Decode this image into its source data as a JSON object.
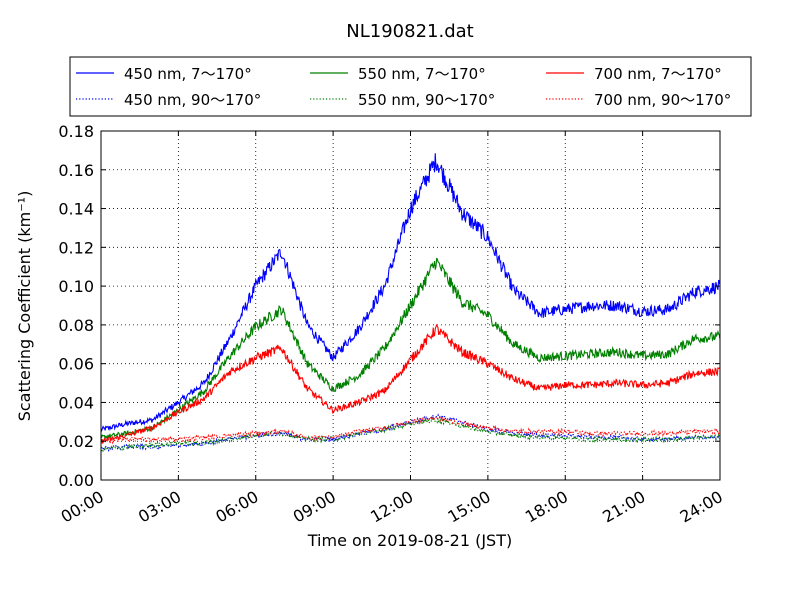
{
  "chart_data": {
    "type": "line",
    "title": "NL190821.dat",
    "xlabel": "Time on 2019-08-21 (JST)",
    "ylabel": "Scattering Coefficient (km⁻¹)",
    "xlim": [
      "00:00",
      "24:00"
    ],
    "ylim": [
      0,
      0.18
    ],
    "grid": true,
    "grid_style": "dotted",
    "legend_position": "top, above plot",
    "x_ticks": [
      "00:00",
      "03:00",
      "06:00",
      "09:00",
      "12:00",
      "15:00",
      "18:00",
      "21:00",
      "24:00"
    ],
    "y_ticks": [
      "0.00",
      "0.02",
      "0.04",
      "0.06",
      "0.08",
      "0.10",
      "0.12",
      "0.14",
      "0.16",
      "0.18"
    ],
    "x": [
      "00:00",
      "01:00",
      "02:00",
      "03:00",
      "04:00",
      "05:00",
      "06:00",
      "07:00",
      "08:00",
      "09:00",
      "10:00",
      "11:00",
      "12:00",
      "13:00",
      "14:00",
      "15:00",
      "16:00",
      "17:00",
      "18:00",
      "19:00",
      "20:00",
      "21:00",
      "22:00",
      "23:00",
      "24:00"
    ],
    "series": [
      {
        "name": "450 nm, 7～170°",
        "color": "#0000ff",
        "style": "solid",
        "values": [
          0.026,
          0.029,
          0.031,
          0.04,
          0.05,
          0.073,
          0.1,
          0.118,
          0.08,
          0.063,
          0.078,
          0.1,
          0.14,
          0.165,
          0.138,
          0.125,
          0.098,
          0.086,
          0.088,
          0.09,
          0.09,
          0.087,
          0.088,
          0.097,
          0.1
        ]
      },
      {
        "name": "550 nm, 7～170°",
        "color": "#008000",
        "style": "solid",
        "values": [
          0.022,
          0.024,
          0.027,
          0.036,
          0.046,
          0.064,
          0.079,
          0.088,
          0.06,
          0.047,
          0.054,
          0.068,
          0.09,
          0.113,
          0.092,
          0.085,
          0.07,
          0.063,
          0.064,
          0.065,
          0.066,
          0.064,
          0.065,
          0.073,
          0.074
        ]
      },
      {
        "name": "700 nm, 7～170°",
        "color": "#ff0000",
        "style": "solid",
        "values": [
          0.02,
          0.023,
          0.027,
          0.035,
          0.042,
          0.056,
          0.063,
          0.068,
          0.047,
          0.036,
          0.04,
          0.046,
          0.062,
          0.078,
          0.066,
          0.06,
          0.052,
          0.047,
          0.049,
          0.049,
          0.05,
          0.049,
          0.05,
          0.055,
          0.056
        ]
      },
      {
        "name": "450 nm, 90～170°",
        "color": "#0000ff",
        "style": "dotted",
        "values": [
          0.016,
          0.017,
          0.017,
          0.018,
          0.019,
          0.021,
          0.023,
          0.024,
          0.021,
          0.021,
          0.024,
          0.026,
          0.03,
          0.033,
          0.03,
          0.026,
          0.024,
          0.023,
          0.023,
          0.022,
          0.022,
          0.021,
          0.021,
          0.022,
          0.022
        ]
      },
      {
        "name": "550 nm, 90～170°",
        "color": "#008000",
        "style": "dotted",
        "values": [
          0.016,
          0.017,
          0.018,
          0.019,
          0.019,
          0.021,
          0.023,
          0.024,
          0.021,
          0.021,
          0.024,
          0.026,
          0.029,
          0.031,
          0.028,
          0.025,
          0.023,
          0.022,
          0.022,
          0.021,
          0.021,
          0.021,
          0.021,
          0.022,
          0.022
        ]
      },
      {
        "name": "700 nm, 90～170°",
        "color": "#ff0000",
        "style": "dotted",
        "values": [
          0.02,
          0.021,
          0.021,
          0.021,
          0.022,
          0.023,
          0.024,
          0.025,
          0.022,
          0.022,
          0.025,
          0.027,
          0.03,
          0.032,
          0.029,
          0.027,
          0.025,
          0.025,
          0.025,
          0.024,
          0.024,
          0.024,
          0.024,
          0.025,
          0.025
        ]
      }
    ]
  }
}
